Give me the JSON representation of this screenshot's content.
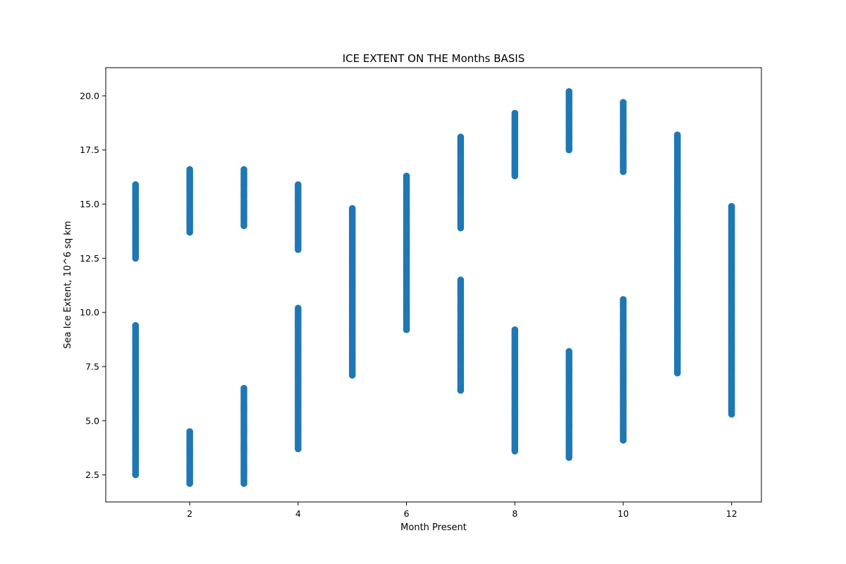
{
  "chart_data": {
    "type": "scatter",
    "title": "ICE EXTENT ON THE Months BASIS",
    "xlabel": "Month  Present",
    "ylabel": "Sea Ice Extent, 10^6 sq km",
    "xlim": [
      0.45,
      12.55
    ],
    "ylim": [
      1.25,
      21.3
    ],
    "x_ticks": [
      2,
      4,
      6,
      8,
      10,
      12
    ],
    "x_tick_labels": [
      "2",
      "4",
      "6",
      "8",
      "10",
      "12"
    ],
    "y_ticks": [
      2.5,
      5.0,
      7.5,
      10.0,
      12.5,
      15.0,
      17.5,
      20.0
    ],
    "y_tick_labels": [
      "2.5",
      "5.0",
      "7.5",
      "10.0",
      "12.5",
      "15.0",
      "17.5",
      "20.0"
    ],
    "grid": false,
    "legend": "none",
    "marker_color": "#1f77b4",
    "ranges": [
      {
        "month": 1,
        "northern": [
          12.5,
          15.9
        ],
        "southern": [
          2.5,
          9.4
        ]
      },
      {
        "month": 2,
        "northern": [
          13.7,
          16.6
        ],
        "southern": [
          2.1,
          4.5
        ]
      },
      {
        "month": 3,
        "northern": [
          14.0,
          16.6
        ],
        "southern": [
          2.1,
          6.5
        ]
      },
      {
        "month": 4,
        "northern": [
          12.9,
          15.9
        ],
        "southern": [
          3.7,
          10.2
        ]
      },
      {
        "month": 5,
        "northern": [
          7.1,
          14.8
        ]
      },
      {
        "month": 6,
        "northern": [
          9.2,
          16.3
        ]
      },
      {
        "month": 7,
        "northern": [
          13.9,
          18.1
        ],
        "southern": [
          6.4,
          11.5
        ]
      },
      {
        "month": 8,
        "northern": [
          16.3,
          19.2
        ],
        "southern": [
          3.6,
          9.2
        ]
      },
      {
        "month": 9,
        "northern": [
          17.5,
          20.2
        ],
        "southern": [
          3.3,
          8.2
        ]
      },
      {
        "month": 10,
        "northern": [
          16.5,
          19.7
        ],
        "southern": [
          4.1,
          10.6
        ]
      },
      {
        "month": 11,
        "northern": [
          7.2,
          18.2
        ]
      },
      {
        "month": 12,
        "northern": [
          5.3,
          14.9
        ]
      }
    ]
  }
}
